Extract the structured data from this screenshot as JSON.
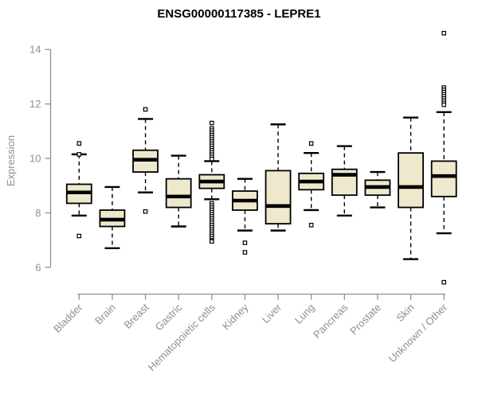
{
  "chart_data": {
    "type": "boxplot",
    "title": "ENSG00000117385 - LEPRE1",
    "ylabel": "Expression",
    "xlabel": "",
    "y_ticks": [
      6,
      8,
      10,
      12,
      14
    ],
    "ylim": [
      5.4,
      14.7
    ],
    "grid": false,
    "legend": false,
    "categories": [
      "Bladder",
      "Brain",
      "Breast",
      "Gastric",
      "Hematopoietic cells",
      "Kidney",
      "Liver",
      "Lung",
      "Pancreas",
      "Prostate",
      "Skin",
      "Unknown / Other"
    ],
    "series": [
      {
        "category": "Bladder",
        "low": 7.9,
        "q1": 8.35,
        "median": 8.75,
        "q3": 9.05,
        "high": 10.15,
        "outliers": [
          10.55,
          10.15,
          7.15
        ]
      },
      {
        "category": "Brain",
        "low": 6.7,
        "q1": 7.5,
        "median": 7.75,
        "q3": 8.1,
        "high": 8.95,
        "outliers": []
      },
      {
        "category": "Breast",
        "low": 8.75,
        "q1": 9.5,
        "median": 9.95,
        "q3": 10.3,
        "high": 11.45,
        "outliers": [
          11.8,
          8.05
        ]
      },
      {
        "category": "Gastric",
        "low": 7.5,
        "q1": 8.2,
        "median": 8.6,
        "q3": 9.25,
        "high": 10.1,
        "outliers": []
      },
      {
        "category": "Hematopoietic cells",
        "low": 8.5,
        "q1": 8.9,
        "median": 9.15,
        "q3": 9.4,
        "high": 9.9,
        "outliers": [
          11.3,
          11.1,
          11.02,
          10.94,
          10.86,
          10.78,
          10.7,
          10.62,
          10.54,
          10.46,
          10.38,
          10.3,
          10.22,
          10.14,
          10.06,
          9.98,
          8.35,
          8.27,
          8.19,
          8.11,
          8.03,
          7.95,
          7.87,
          7.79,
          7.71,
          7.63,
          7.55,
          7.47,
          7.39,
          7.31,
          7.23,
          7.15,
          7.07,
          6.99,
          6.95
        ]
      },
      {
        "category": "Kidney",
        "low": 7.35,
        "q1": 8.1,
        "median": 8.45,
        "q3": 8.8,
        "high": 9.25,
        "outliers": [
          6.9,
          6.55
        ]
      },
      {
        "category": "Liver",
        "low": 7.35,
        "q1": 7.6,
        "median": 8.25,
        "q3": 9.55,
        "high": 11.25,
        "outliers": []
      },
      {
        "category": "Lung",
        "low": 8.1,
        "q1": 8.85,
        "median": 9.15,
        "q3": 9.45,
        "high": 10.2,
        "outliers": [
          10.55,
          7.55
        ]
      },
      {
        "category": "Pancreas",
        "low": 7.9,
        "q1": 8.65,
        "median": 9.4,
        "q3": 9.6,
        "high": 10.45,
        "outliers": []
      },
      {
        "category": "Prostate",
        "low": 8.2,
        "q1": 8.65,
        "median": 8.95,
        "q3": 9.2,
        "high": 9.5,
        "outliers": []
      },
      {
        "category": "Skin",
        "low": 6.3,
        "q1": 8.2,
        "median": 8.95,
        "q3": 10.2,
        "high": 11.5,
        "outliers": []
      },
      {
        "category": "Unknown / Other",
        "low": 7.25,
        "q1": 8.6,
        "median": 9.35,
        "q3": 9.9,
        "high": 11.7,
        "outliers": [
          14.6,
          12.6,
          12.52,
          12.44,
          12.36,
          12.28,
          12.2,
          12.12,
          12.04,
          11.97,
          5.45
        ]
      }
    ],
    "colors": {
      "box_fill": "#EEE8CD",
      "box_stroke": "#000000",
      "median": "#000000",
      "whisker": "#000000",
      "outlier_stroke": "#000000",
      "axis": "#8F8F8F",
      "axis_text": "#8F8F8F",
      "title_color": "#000000",
      "background": "#FFFFFF"
    }
  }
}
